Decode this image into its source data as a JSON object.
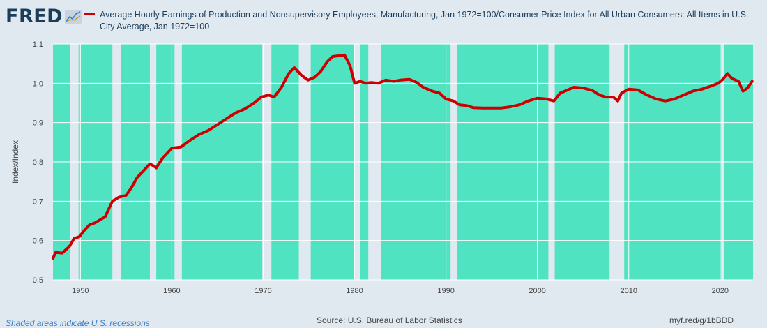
{
  "brand": {
    "logo_text": "FRED",
    "logo_icon": "line-graph-icon"
  },
  "legend": {
    "label": "Average Hourly Earnings of Production and Nonsupervisory Employees, Manufacturing, Jan 1972=100/Consumer Price Index for All Urban Consumers: All Items in U.S. City Average, Jan 1972=100",
    "color": "#cc0000"
  },
  "footer": {
    "recession_note": "Shaded areas indicate U.S. recessions",
    "source": "Source: U.S. Bureau of Labor Statistics",
    "link": "myf.red/g/1bBDD"
  },
  "colors": {
    "plot_bg": "#50e3c2",
    "recession": "#e1e9f0",
    "page_bg": "#e1e9f0",
    "line": "#cc0000"
  },
  "chart_data": {
    "type": "line",
    "title": "",
    "xlabel": "",
    "ylabel": "Index/Index",
    "xlim": [
      1947,
      2023.6
    ],
    "ylim": [
      0.5,
      1.1
    ],
    "grid": true,
    "legend_position": "top",
    "x_ticks": [
      "1950",
      "1960",
      "1970",
      "1980",
      "1990",
      "2000",
      "2010",
      "2020"
    ],
    "y_ticks": [
      "0.5",
      "0.6",
      "0.7",
      "0.8",
      "0.9",
      "1.0",
      "1.1"
    ],
    "recessions": [
      [
        1948.9,
        1949.8
      ],
      [
        1953.5,
        1954.4
      ],
      [
        1957.6,
        1958.3
      ],
      [
        1960.3,
        1961.1
      ],
      [
        1969.9,
        1970.9
      ],
      [
        1973.9,
        1975.2
      ],
      [
        1980.0,
        1980.6
      ],
      [
        1981.5,
        1982.9
      ],
      [
        1990.5,
        1991.2
      ],
      [
        2001.2,
        2001.9
      ],
      [
        2007.9,
        2009.5
      ],
      [
        2020.1,
        2020.4
      ]
    ],
    "series": [
      {
        "x": [
          1947,
          1947.3,
          1948,
          1948.8,
          1949.3,
          1949.9,
          1950.5,
          1951,
          1951.6,
          1952.3,
          1952.7,
          1953.5,
          1954.2,
          1955,
          1955.6,
          1956.2,
          1957,
          1957.6,
          1958,
          1958.3,
          1959,
          1960,
          1961,
          1962,
          1963,
          1964,
          1965,
          1966,
          1967,
          1968,
          1969,
          1969.8,
          1970.6,
          1971.2,
          1972,
          1972.8,
          1973.4,
          1974.2,
          1974.9,
          1975.6,
          1976.3,
          1977,
          1977.6,
          1978.3,
          1978.9,
          1979.5,
          1980,
          1980.6,
          1981.2,
          1981.8,
          1982.6,
          1983.4,
          1984.3,
          1985,
          1986,
          1986.8,
          1987.5,
          1988.5,
          1989.3,
          1990,
          1990.8,
          1991.5,
          1992.3,
          1993,
          1994,
          1995,
          1996,
          1997,
          1998,
          1999,
          2000,
          2001,
          2001.8,
          2002.5,
          2003,
          2004,
          2005,
          2006,
          2006.8,
          2007.5,
          2008.3,
          2008.8,
          2009.2,
          2010,
          2011,
          2012,
          2013,
          2014,
          2015,
          2016,
          2017,
          2018,
          2019,
          2019.8,
          2020.3,
          2020.8,
          2021.3,
          2022,
          2022.5,
          2023,
          2023.5
        ],
        "values": [
          0.555,
          0.57,
          0.568,
          0.585,
          0.605,
          0.61,
          0.628,
          0.64,
          0.645,
          0.655,
          0.66,
          0.7,
          0.71,
          0.715,
          0.735,
          0.76,
          0.78,
          0.795,
          0.79,
          0.785,
          0.81,
          0.835,
          0.838,
          0.855,
          0.87,
          0.88,
          0.895,
          0.91,
          0.925,
          0.935,
          0.95,
          0.965,
          0.97,
          0.965,
          0.99,
          1.025,
          1.04,
          1.02,
          1.008,
          1.015,
          1.03,
          1.055,
          1.068,
          1.07,
          1.072,
          1.045,
          1.0,
          1.005,
          1.0,
          1.002,
          1.0,
          1.008,
          1.005,
          1.008,
          1.01,
          1.002,
          0.99,
          0.98,
          0.975,
          0.96,
          0.955,
          0.945,
          0.943,
          0.938,
          0.937,
          0.937,
          0.937,
          0.94,
          0.945,
          0.955,
          0.962,
          0.96,
          0.955,
          0.975,
          0.98,
          0.99,
          0.988,
          0.982,
          0.97,
          0.965,
          0.965,
          0.955,
          0.975,
          0.985,
          0.983,
          0.97,
          0.96,
          0.955,
          0.96,
          0.97,
          0.98,
          0.985,
          0.993,
          1.0,
          1.01,
          1.025,
          1.012,
          1.005,
          0.98,
          0.988,
          1.005
        ]
      }
    ]
  }
}
